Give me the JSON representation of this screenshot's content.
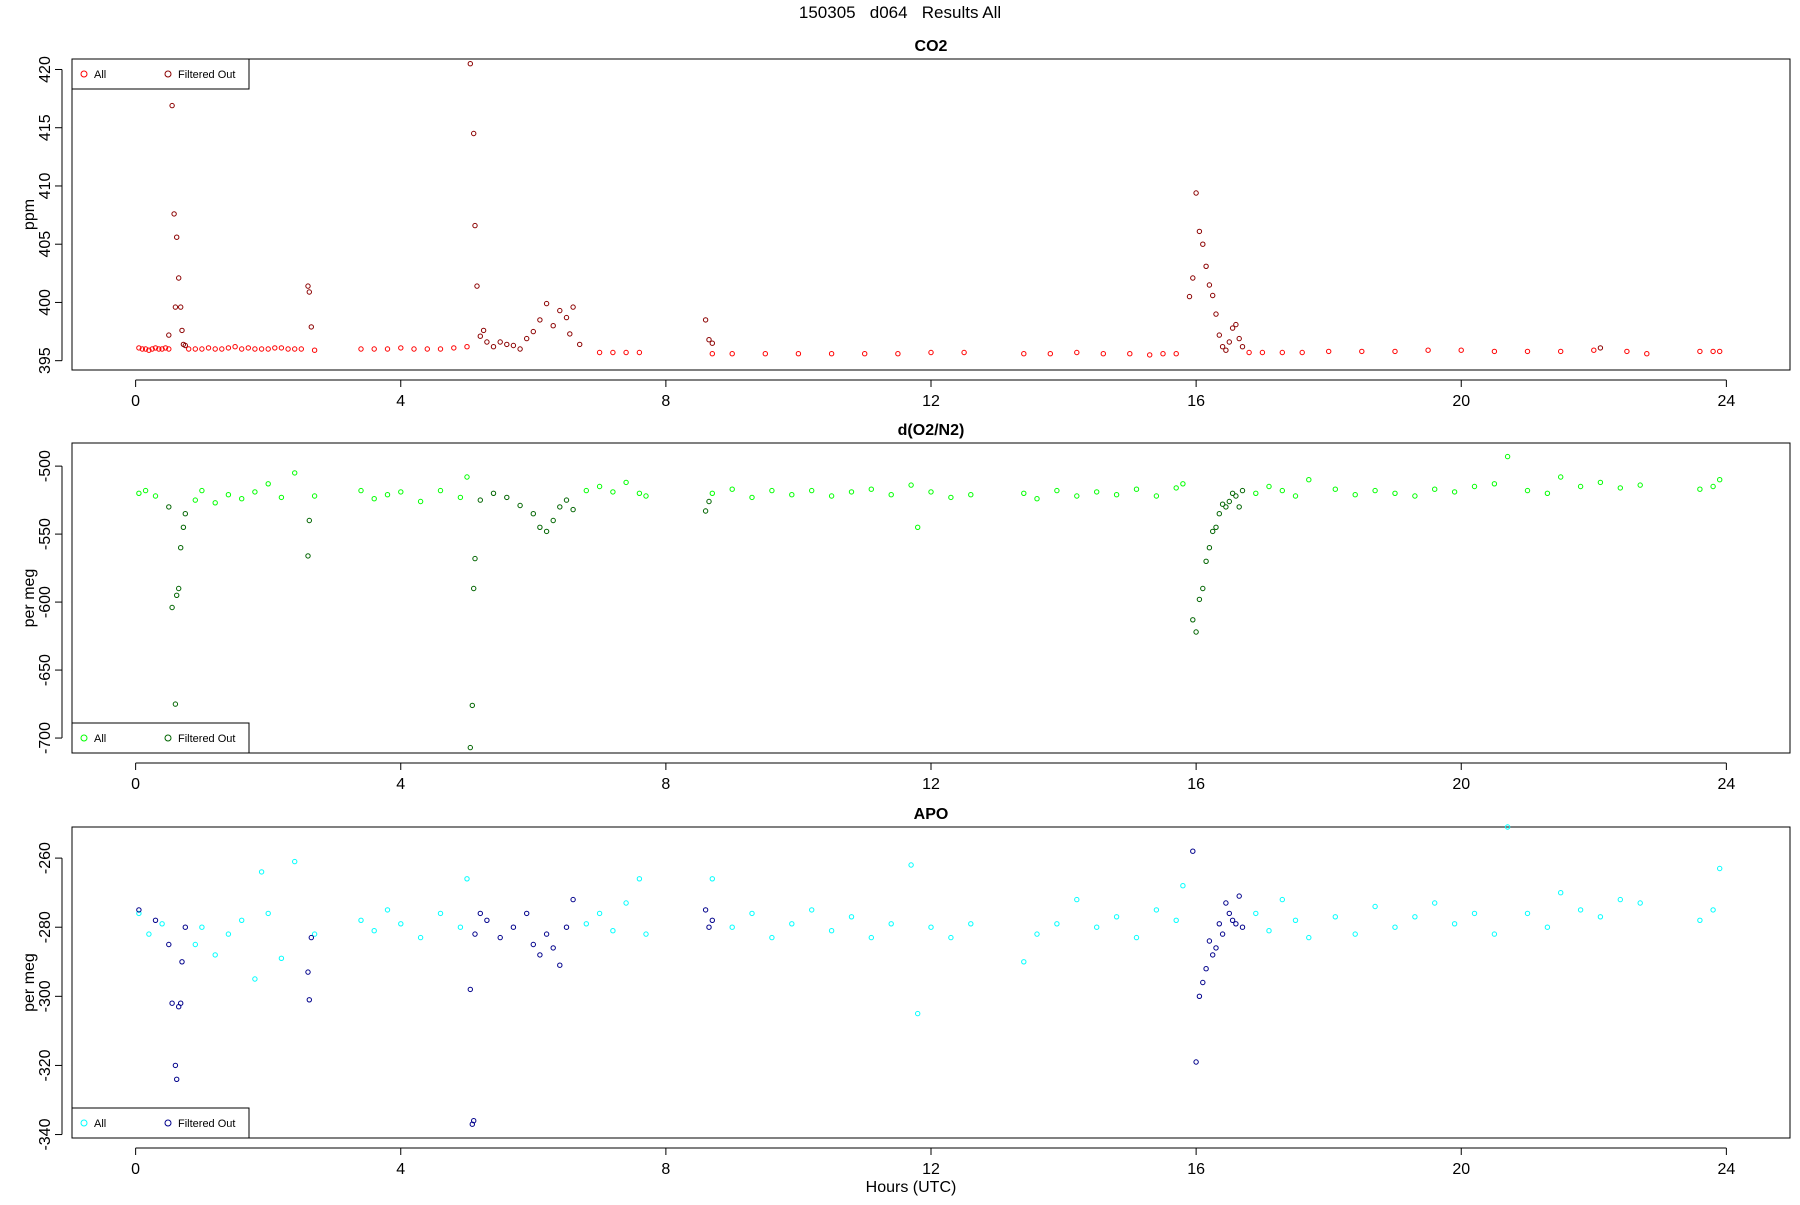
{
  "figure": {
    "title": "150305   d064   Results All",
    "xlabel": "Hours (UTC)"
  },
  "chart_data": [
    {
      "type": "scatter",
      "title": "CO2",
      "ylabel": "ppm",
      "xlim": [
        -0.96,
        24.96
      ],
      "ylim": [
        394.2,
        420.9
      ],
      "xticks": [
        0,
        4,
        8,
        12,
        16,
        20,
        24
      ],
      "yticks": [
        395,
        400,
        405,
        410,
        415,
        420
      ],
      "legend_position": "top-left",
      "colors": {
        "all": "#ff0000",
        "filtered": "#8b0000"
      },
      "series": [
        {
          "name": "All",
          "x": [
            0.05,
            0.1,
            0.15,
            0.2,
            0.25,
            0.3,
            0.35,
            0.4,
            0.45,
            0.5,
            0.8,
            0.9,
            1.0,
            1.1,
            1.2,
            1.3,
            1.4,
            1.5,
            1.6,
            1.7,
            1.8,
            1.9,
            2.0,
            2.1,
            2.2,
            2.3,
            2.4,
            2.5,
            2.7,
            3.4,
            3.6,
            3.8,
            4.0,
            4.2,
            4.4,
            4.6,
            4.8,
            5.0,
            7.0,
            7.2,
            7.4,
            7.6,
            8.7,
            9.0,
            9.5,
            10.0,
            10.5,
            11.0,
            11.5,
            12.0,
            12.5,
            13.4,
            13.8,
            14.2,
            14.6,
            15.0,
            15.3,
            15.5,
            15.7,
            16.8,
            17.0,
            17.3,
            17.6,
            18.0,
            18.5,
            19.0,
            19.5,
            20.0,
            20.5,
            21.0,
            21.5,
            22.0,
            22.5,
            22.8,
            23.6,
            23.8,
            23.9
          ],
          "y": [
            396.1,
            396.0,
            396.0,
            395.9,
            396.0,
            396.1,
            396.0,
            396.0,
            396.1,
            396.0,
            396.0,
            396.0,
            396.0,
            396.1,
            396.0,
            396.0,
            396.1,
            396.2,
            396.0,
            396.1,
            396.0,
            396.0,
            396.0,
            396.1,
            396.1,
            396.0,
            396.0,
            396.0,
            395.9,
            396.0,
            396.0,
            396.0,
            396.1,
            396.0,
            396.0,
            396.0,
            396.1,
            396.2,
            395.7,
            395.7,
            395.7,
            395.7,
            395.6,
            395.6,
            395.6,
            395.6,
            395.6,
            395.6,
            395.6,
            395.7,
            395.7,
            395.6,
            395.6,
            395.7,
            395.6,
            395.6,
            395.5,
            395.6,
            395.6,
            395.7,
            395.7,
            395.7,
            395.7,
            395.8,
            395.8,
            395.8,
            395.9,
            395.9,
            395.8,
            395.8,
            395.8,
            395.9,
            395.8,
            395.6,
            395.8,
            395.8,
            395.8
          ]
        },
        {
          "name": "Filtered Out",
          "x": [
            0.5,
            0.55,
            0.58,
            0.6,
            0.62,
            0.65,
            0.68,
            0.7,
            0.72,
            0.75,
            2.6,
            2.62,
            2.65,
            5.05,
            5.1,
            5.12,
            5.15,
            5.2,
            5.25,
            5.3,
            5.4,
            5.5,
            5.6,
            5.7,
            5.8,
            5.9,
            6.0,
            6.1,
            6.2,
            6.3,
            6.4,
            6.5,
            6.55,
            6.6,
            6.7,
            8.6,
            8.65,
            8.7,
            15.9,
            15.95,
            16.0,
            16.05,
            16.1,
            16.15,
            16.2,
            16.25,
            16.3,
            16.35,
            16.4,
            16.45,
            16.5,
            16.55,
            16.6,
            16.65,
            16.7,
            22.1
          ],
          "y": [
            397.2,
            416.9,
            407.6,
            399.6,
            405.6,
            402.1,
            399.6,
            397.6,
            396.4,
            396.3,
            401.4,
            400.9,
            397.9,
            420.5,
            414.5,
            406.6,
            401.4,
            397.1,
            397.6,
            396.6,
            396.2,
            396.6,
            396.4,
            396.3,
            396.0,
            396.9,
            397.5,
            398.5,
            399.9,
            398.0,
            399.3,
            398.7,
            397.3,
            399.6,
            396.4,
            398.5,
            396.8,
            396.5,
            400.5,
            402.1,
            409.4,
            406.1,
            405.0,
            403.1,
            401.5,
            400.6,
            399.0,
            397.2,
            396.2,
            395.9,
            396.6,
            397.8,
            398.1,
            396.9,
            396.2,
            396.1
          ]
        }
      ]
    },
    {
      "type": "scatter",
      "title": "d(O2/N2)",
      "ylabel": "per meg",
      "xlim": [
        -0.96,
        24.96
      ],
      "ylim": [
        -711,
        -483
      ],
      "xticks": [
        0,
        4,
        8,
        12,
        16,
        20,
        24
      ],
      "yticks": [
        -700,
        -650,
        -600,
        -550,
        -500
      ],
      "legend_position": "bottom-left",
      "colors": {
        "all": "#00ff00",
        "filtered": "#006400"
      },
      "series": [
        {
          "name": "All",
          "x": [
            0.05,
            0.15,
            0.3,
            0.9,
            1.0,
            1.2,
            1.4,
            1.6,
            1.8,
            2.0,
            2.2,
            2.4,
            2.7,
            3.4,
            3.6,
            3.8,
            4.0,
            4.3,
            4.6,
            4.9,
            5.0,
            6.8,
            7.0,
            7.2,
            7.4,
            7.6,
            7.7,
            8.7,
            9.0,
            9.3,
            9.6,
            9.9,
            10.2,
            10.5,
            10.8,
            11.1,
            11.4,
            11.7,
            11.8,
            12.0,
            12.3,
            12.6,
            13.4,
            13.6,
            13.9,
            14.2,
            14.5,
            14.8,
            15.1,
            15.4,
            15.7,
            15.8,
            16.9,
            17.1,
            17.3,
            17.5,
            17.7,
            18.1,
            18.4,
            18.7,
            19.0,
            19.3,
            19.6,
            19.9,
            20.2,
            20.5,
            20.7,
            21.0,
            21.3,
            21.5,
            21.8,
            22.1,
            22.4,
            22.7,
            23.6,
            23.8,
            23.9
          ],
          "y": [
            -520,
            -518,
            -522,
            -525,
            -518,
            -527,
            -521,
            -524,
            -519,
            -513,
            -523,
            -505,
            -522,
            -518,
            -524,
            -521,
            -519,
            -526,
            -518,
            -523,
            -508,
            -518,
            -515,
            -519,
            -512,
            -520,
            -522,
            -520,
            -517,
            -523,
            -518,
            -521,
            -518,
            -522,
            -519,
            -517,
            -521,
            -514,
            -545,
            -519,
            -523,
            -521,
            -520,
            -524,
            -518,
            -522,
            -519,
            -521,
            -517,
            -522,
            -516,
            -513,
            -520,
            -515,
            -518,
            -522,
            -510,
            -517,
            -521,
            -518,
            -520,
            -522,
            -517,
            -519,
            -515,
            -513,
            -493,
            -518,
            -520,
            -508,
            -515,
            -512,
            -516,
            -514,
            -517,
            -515,
            -510
          ]
        },
        {
          "name": "Filtered Out",
          "x": [
            0.5,
            0.55,
            0.6,
            0.62,
            0.65,
            0.68,
            0.72,
            0.75,
            2.6,
            2.62,
            5.05,
            5.08,
            5.1,
            5.12,
            5.2,
            5.4,
            5.6,
            5.8,
            6.0,
            6.1,
            6.2,
            6.3,
            6.4,
            6.5,
            6.6,
            8.6,
            8.65,
            15.95,
            16.0,
            16.05,
            16.1,
            16.15,
            16.2,
            16.25,
            16.3,
            16.35,
            16.4,
            16.45,
            16.5,
            16.55,
            16.6,
            16.65,
            16.7
          ],
          "y": [
            -530,
            -604,
            -675,
            -595,
            -590,
            -560,
            -545,
            -535,
            -566,
            -540,
            -707,
            -676,
            -590,
            -568,
            -525,
            -520,
            -523,
            -529,
            -535,
            -545,
            -548,
            -540,
            -530,
            -525,
            -532,
            -533,
            -526,
            -613,
            -622,
            -598,
            -590,
            -570,
            -560,
            -548,
            -545,
            -535,
            -528,
            -530,
            -526,
            -520,
            -522,
            -530,
            -518
          ]
        }
      ]
    },
    {
      "type": "scatter",
      "title": "APO",
      "ylabel": "per meg",
      "xlim": [
        -0.96,
        24.96
      ],
      "ylim": [
        -341,
        -251
      ],
      "xticks": [
        0,
        4,
        8,
        12,
        16,
        20,
        24
      ],
      "yticks": [
        -340,
        -320,
        -300,
        -280,
        -260
      ],
      "legend_position": "bottom-left",
      "colors": {
        "all": "#00ffff",
        "filtered": "#00008b"
      },
      "series": [
        {
          "name": "All",
          "x": [
            0.05,
            0.2,
            0.4,
            0.9,
            1.0,
            1.2,
            1.4,
            1.6,
            1.8,
            1.9,
            2.0,
            2.2,
            2.4,
            2.7,
            3.4,
            3.6,
            3.8,
            4.0,
            4.3,
            4.6,
            4.9,
            5.0,
            6.8,
            7.0,
            7.2,
            7.4,
            7.6,
            7.7,
            8.7,
            9.0,
            9.3,
            9.6,
            9.9,
            10.2,
            10.5,
            10.8,
            11.1,
            11.4,
            11.7,
            11.8,
            12.0,
            12.3,
            12.6,
            13.4,
            13.6,
            13.9,
            14.2,
            14.5,
            14.8,
            15.1,
            15.4,
            15.7,
            15.8,
            16.9,
            17.1,
            17.3,
            17.5,
            17.7,
            18.1,
            18.4,
            18.7,
            19.0,
            19.3,
            19.6,
            19.9,
            20.2,
            20.5,
            20.7,
            21.0,
            21.3,
            21.5,
            21.8,
            22.1,
            22.4,
            22.7,
            23.6,
            23.8,
            23.9
          ],
          "y": [
            -276,
            -282,
            -279,
            -285,
            -280,
            -288,
            -282,
            -278,
            -295,
            -264,
            -276,
            -289,
            -261,
            -282,
            -278,
            -281,
            -275,
            -279,
            -283,
            -276,
            -280,
            -266,
            -279,
            -276,
            -281,
            -273,
            -266,
            -282,
            -266,
            -280,
            -276,
            -283,
            -279,
            -275,
            -281,
            -277,
            -283,
            -279,
            -262,
            -305,
            -280,
            -283,
            -279,
            -290,
            -282,
            -279,
            -272,
            -280,
            -277,
            -283,
            -275,
            -278,
            -268,
            -276,
            -281,
            -272,
            -278,
            -283,
            -277,
            -282,
            -274,
            -280,
            -277,
            -273,
            -279,
            -276,
            -282,
            -251,
            -276,
            -280,
            -270,
            -275,
            -277,
            -272,
            -273,
            -278,
            -275,
            -263
          ]
        },
        {
          "name": "Filtered Out",
          "x": [
            0.05,
            0.3,
            0.5,
            0.55,
            0.6,
            0.62,
            0.65,
            0.68,
            0.7,
            0.75,
            2.6,
            2.62,
            2.65,
            5.05,
            5.08,
            5.1,
            5.12,
            5.2,
            5.3,
            5.5,
            5.7,
            5.9,
            6.0,
            6.1,
            6.2,
            6.3,
            6.4,
            6.5,
            6.6,
            8.6,
            8.65,
            8.7,
            15.95,
            16.0,
            16.05,
            16.1,
            16.15,
            16.2,
            16.25,
            16.3,
            16.35,
            16.4,
            16.45,
            16.5,
            16.55,
            16.6,
            16.65,
            16.7
          ],
          "y": [
            -275,
            -278,
            -285,
            -302,
            -320,
            -324,
            -303,
            -302,
            -290,
            -280,
            -293,
            -301,
            -283,
            -298,
            -337,
            -336,
            -282,
            -276,
            -278,
            -283,
            -280,
            -276,
            -285,
            -288,
            -282,
            -286,
            -291,
            -280,
            -272,
            -275,
            -280,
            -278,
            -258,
            -319,
            -300,
            -296,
            -292,
            -284,
            -288,
            -286,
            -279,
            -282,
            -273,
            -276,
            -278,
            -279,
            -271,
            -280
          ]
        }
      ]
    }
  ]
}
